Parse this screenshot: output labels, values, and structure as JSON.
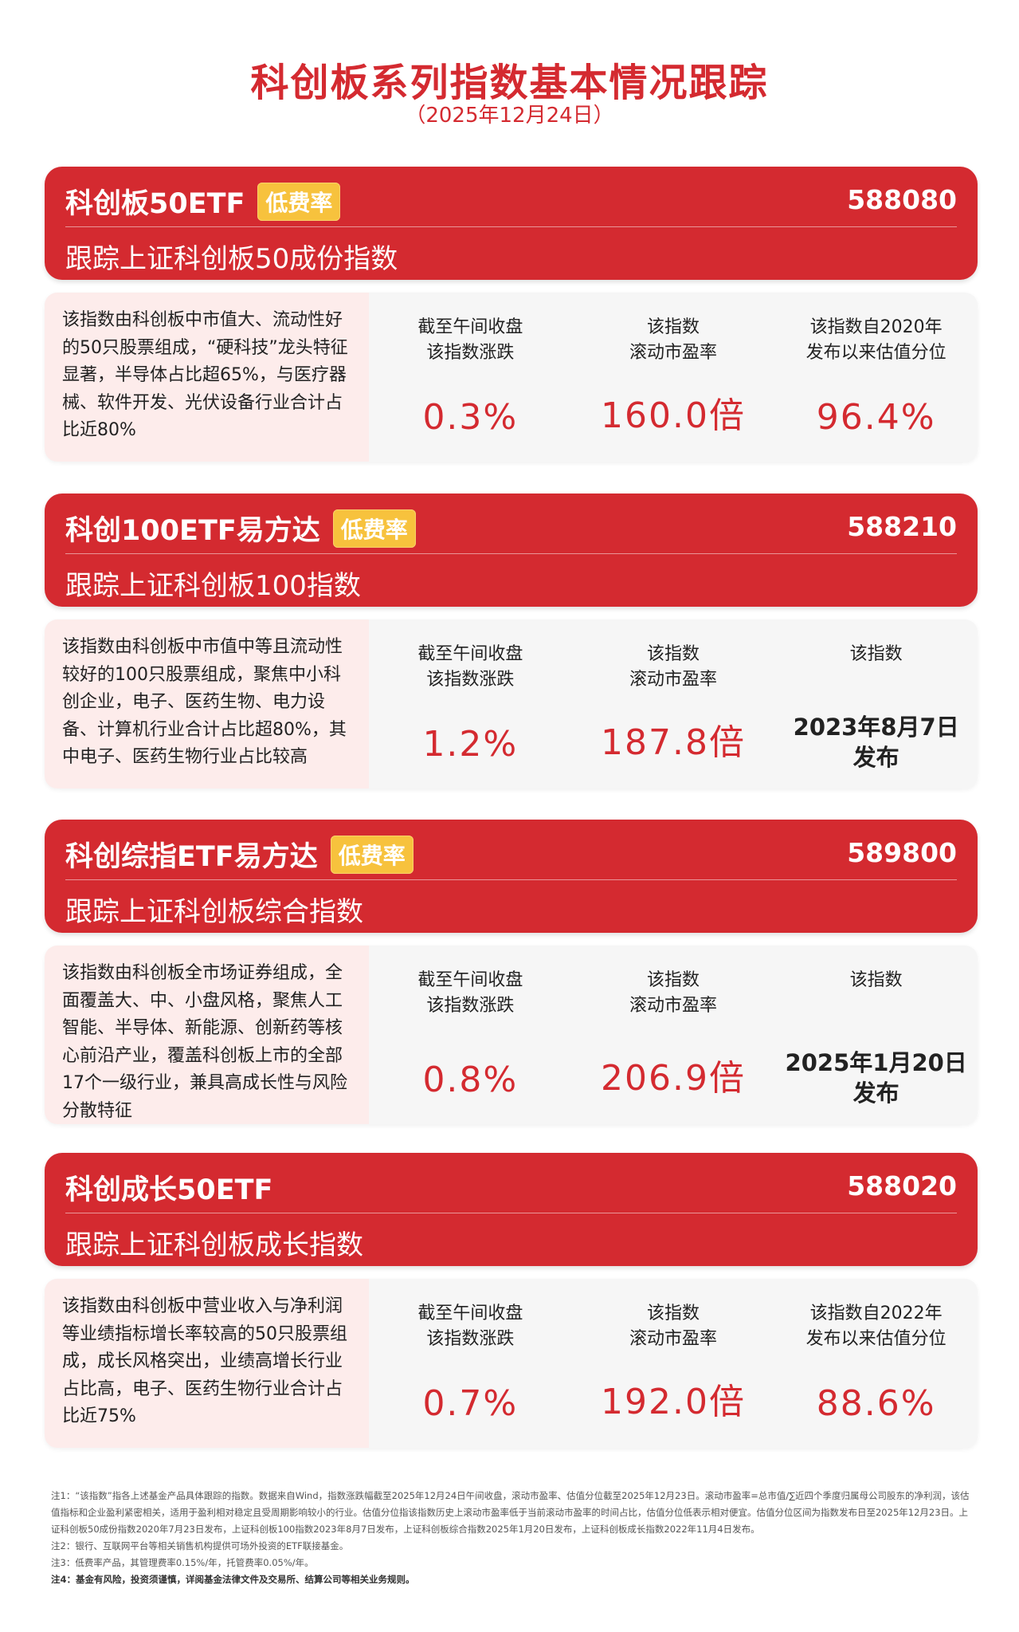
{
  "title": "科创板系列指数基本情况跟踪",
  "subtitle": "（2025年12月24日）",
  "cards": [
    {
      "name": "科创板50ETF",
      "badge": "低费率",
      "code": "588080",
      "track": "跟踪上证科创板50成份指数",
      "desc": "该指数由科创板中市值大、流动性好的50只股票组成，“硬科技”龙头特征显著，半导体占比超65%，与医疗器械、软件开发、光伏设备行业合计占比近80%",
      "s1_label": "截至午间收盘 该指数涨跌",
      "s1_value": "0.3%",
      "s2_label": "该指数 滚动市盈率",
      "s2_value": "160.0倍",
      "s3_label": "该指数自2020年 发布以来估值分位",
      "s3_value": "96.4%"
    },
    {
      "name": "科创100ETF易方达",
      "badge": "低费率",
      "code": "588210",
      "track": "跟踪上证科创板100指数",
      "desc": "该指数由科创板中市值中等且流动性较好的100只股票组成，聚焦中小科创企业，电子、医药生物、电力设备、计算机行业合计占比超80%，其中电子、医药生物行业占比较高",
      "s1_label": "截至午间收盘 该指数涨跌",
      "s1_value": "1.2%",
      "s2_label": "该指数 滚动市盈率",
      "s2_value": "187.8倍",
      "s3_label": "该指数",
      "s3_date": "2023年8月7日 发布"
    },
    {
      "name": "科创综指ETF易方达",
      "badge": "低费率",
      "code": "589800",
      "track": "跟踪上证科创板综合指数",
      "desc": "该指数由科创板全市场证券组成，全面覆盖大、中、小盘风格，聚焦人工智能、半导体、新能源、创新药等核心前沿产业，覆盖科创板上市的全部17个一级行业，兼具高成长性与风险分散特征",
      "s1_label": "截至午间收盘 该指数涨跌",
      "s1_value": "0.8%",
      "s2_label": "该指数 滚动市盈率",
      "s2_value": "206.9倍",
      "s3_label": "该指数",
      "s3_date": "2025年1月20日 发布"
    },
    {
      "name": "科创成长50ETF",
      "code": "588020",
      "track": "跟踪上证科创板成长指数",
      "desc": "该指数由科创板中营业收入与净利润等业绩指标增长率较高的50只股票组成，成长风格突出，业绩高增长行业占比高，电子、医药生物行业合计占比近75%",
      "s1_label": "截至午间收盘 该指数涨跌",
      "s1_value": "0.7%",
      "s2_label": "该指数 滚动市盈率",
      "s2_value": "192.0倍",
      "s3_label": "该指数自2022年 发布以来估值分位",
      "s3_value": "88.6%"
    }
  ],
  "notes": [
    "注1：“该指数”指各上述基金产品具体跟踪的指数。数据来自Wind，指数涨跌幅截至2025年12月24日午间收盘，滚动市盈率、估值分位截至2025年12月23日。滚动市盈率=总市值/∑近四个季度归属母公司股东的净利润，该估值指标和企业盈利紧密相关，适用于盈利相对稳定且受周期影响较小的行业。估值分位指该指数历史上滚动市盈率低于当前滚动市盈率的时间占比，估值分位低表示相对便宜。估值分位区间为指数发布日至2025年12月23日。上证科创板50成份指数2020年7月23日发布，上证科创板100指数2023年8月7日发布，上证科创板综合指数2025年1月20日发布，上证科创板成长指数2022年11月4日发布。",
    "注2：银行、互联网平台等相关销售机构提供可场外投资的ETF联接基金。",
    "注3：低费率产品，其管理费率0.15%/年，托管费率0.05%/年。",
    "注4：基金有风险，投资须谨慎，详阅基金法律文件及交易所、结算公司等相关业务规则。"
  ],
  "colors": {
    "brand_red": "#d42a30",
    "badge_yellow": "#f7c23d"
  }
}
